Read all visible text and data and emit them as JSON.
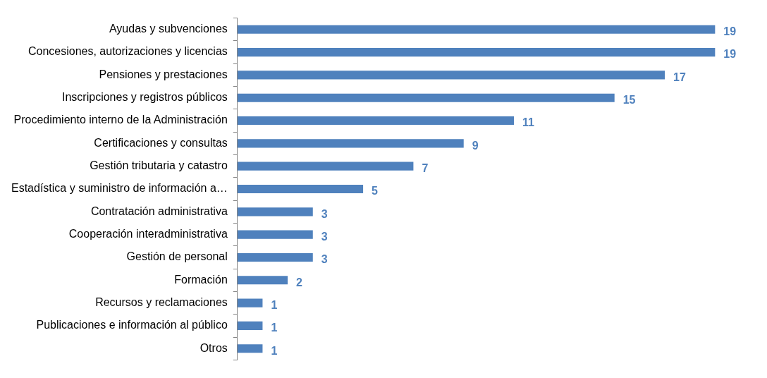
{
  "chart_data": {
    "type": "bar",
    "orientation": "horizontal",
    "data_labels": true,
    "legend": false,
    "categories": [
      "Ayudas y subvenciones",
      "Concesiones, autorizaciones y licencias",
      "Pensiones y prestaciones",
      "Inscripciones y registros públicos",
      "Procedimiento interno de la Administración",
      "Certificaciones y consultas",
      "Gestión tributaria y catastro",
      "Estadística y suministro de información a…",
      "Contratación administrativa",
      "Cooperación interadministrativa",
      "Gestión de personal",
      "Formación",
      "Recursos y reclamaciones",
      "Publicaciones e información al público",
      "Otros"
    ],
    "series": [
      {
        "color": "#4f81bd",
        "values": [
          19,
          19,
          17,
          15,
          11,
          9,
          7,
          5,
          3,
          3,
          3,
          2,
          1,
          1,
          1
        ]
      }
    ]
  }
}
